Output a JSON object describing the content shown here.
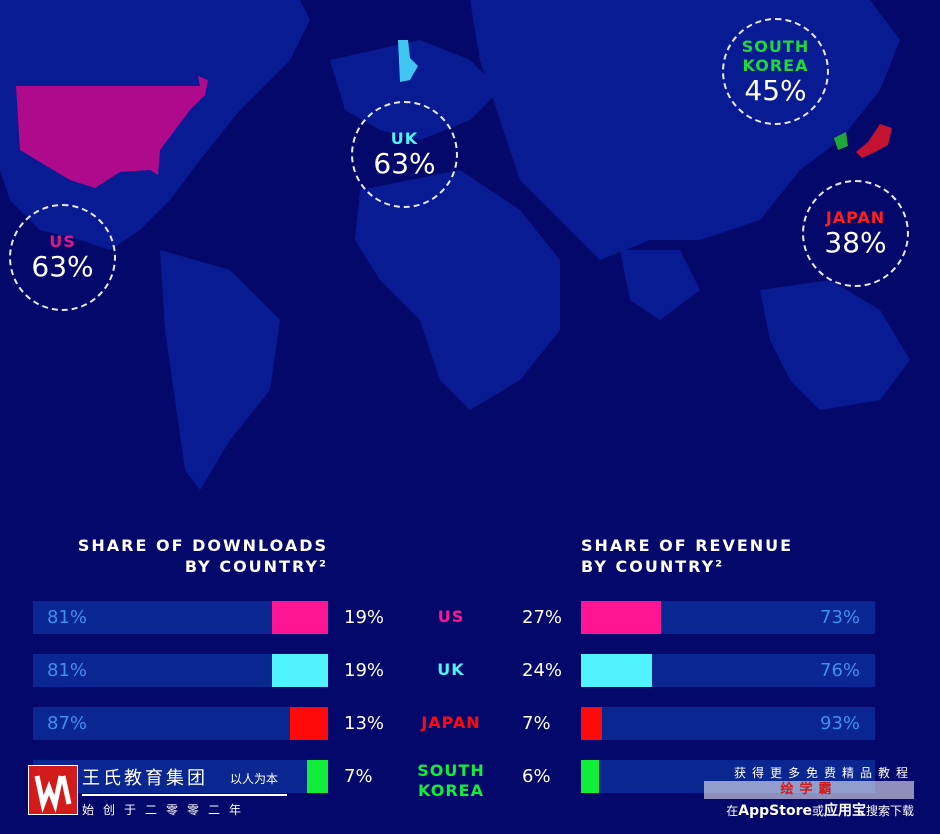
{
  "map": {
    "bubbles": [
      {
        "country": "US",
        "value": "63%",
        "color": "#e0188c"
      },
      {
        "country": "UK",
        "value": "63%",
        "color": "#4ff3ff"
      },
      {
        "country_line1": "SOUTH",
        "country_line2": "KOREA",
        "value": "45%",
        "color": "#1fd83a"
      },
      {
        "country": "JAPAN",
        "value": "38%",
        "color": "#ff1e1e"
      }
    ]
  },
  "chart_data": [
    {
      "type": "bar",
      "title_line1": "SHARE OF DOWNLOADS",
      "title_line2": "BY COUNTRY²",
      "categories": [
        "US",
        "UK",
        "JAPAN",
        "SOUTH KOREA"
      ],
      "highlight_values": [
        19,
        19,
        13,
        7
      ],
      "rest_values": [
        81,
        81,
        87,
        null
      ],
      "highlight_labels": [
        "19%",
        "19%",
        "13%",
        "7%"
      ],
      "rest_labels": [
        "81%",
        "81%",
        "87%",
        ""
      ]
    },
    {
      "type": "bar",
      "title_line1": "SHARE OF REVENUE",
      "title_line2": "BY COUNTRY²",
      "categories": [
        "US",
        "UK",
        "JAPAN",
        "SOUTH KOREA"
      ],
      "highlight_values": [
        27,
        24,
        7,
        6
      ],
      "rest_values": [
        73,
        76,
        93,
        null
      ],
      "highlight_labels": [
        "27%",
        "24%",
        "7%",
        "6%"
      ],
      "rest_labels": [
        "73%",
        "76%",
        "93%",
        ""
      ]
    }
  ],
  "rows": [
    {
      "label_line1": "US",
      "label_line2": "",
      "color": "#ff1493"
    },
    {
      "label_line1": "UK",
      "label_line2": "",
      "color": "#4ff3ff"
    },
    {
      "label_line1": "JAPAN",
      "label_line2": "",
      "color": "#ff0a0a"
    },
    {
      "label_line1": "SOUTH",
      "label_line2": "KOREA",
      "color": "#10ee3a"
    }
  ],
  "watermark": {
    "logo_text": "W",
    "name": "王氏教育集团",
    "slogan": "以人为本",
    "since": "始创于二零零二年",
    "promo": "获得更多免费精品教程",
    "app_name": "绘学霸",
    "download_prefix": "在",
    "download_store": "AppStore",
    "download_mid": "或",
    "download_market": "应用宝",
    "download_suffix": "搜索下载"
  }
}
